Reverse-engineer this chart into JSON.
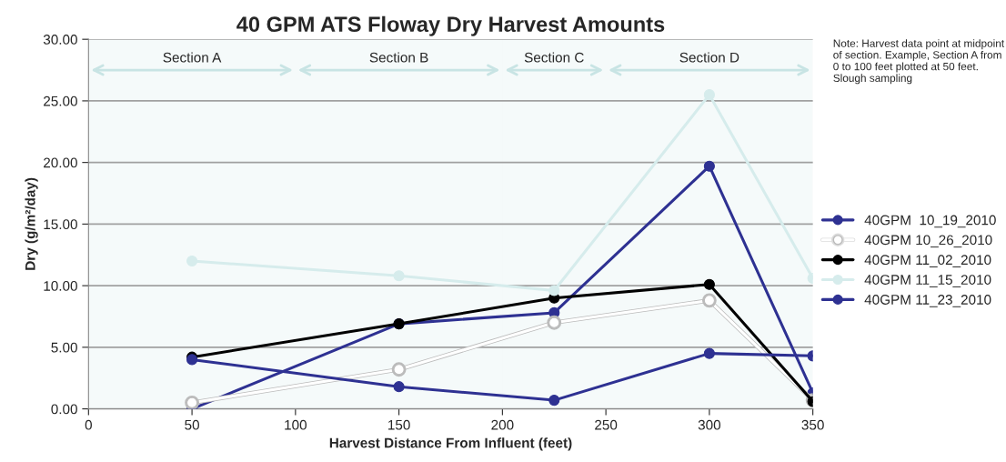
{
  "chart_data": {
    "type": "line",
    "title": "40 GPM ATS Floway Dry Harvest Amounts",
    "xlabel": "Harvest Distance From Influent (feet)",
    "ylabel": "Dry (g/m²/day)",
    "x": [
      50,
      150,
      225,
      300,
      350
    ],
    "series": [
      {
        "name": "40GPM  10_19_2010",
        "color": "#2e3192",
        "values": [
          0.0,
          6.9,
          7.8,
          19.7,
          1.3
        ]
      },
      {
        "name": "40GPM 10_26_2010",
        "color": "#ffffff",
        "values": [
          0.5,
          3.2,
          7.0,
          8.8,
          0.7
        ]
      },
      {
        "name": "40GPM 11_02_2010",
        "color": "#000000",
        "values": [
          4.2,
          6.9,
          9.0,
          10.1,
          0.6
        ]
      },
      {
        "name": "40GPM 11_15_2010",
        "color": "#d6ecec",
        "values": [
          12.0,
          10.8,
          9.6,
          25.5,
          10.6
        ]
      },
      {
        "name": "40GPM 11_23_2010",
        "color": "#2e3192",
        "values": [
          4.0,
          1.8,
          0.7,
          4.5,
          4.3
        ]
      }
    ],
    "xlim": [
      0,
      350
    ],
    "xticks": [
      0,
      50,
      100,
      150,
      200,
      250,
      300,
      350
    ],
    "ylim": [
      0,
      30
    ],
    "yticks": [
      {
        "value": 0,
        "label": "0.00"
      },
      {
        "value": 5,
        "label": "5.00"
      },
      {
        "value": 10,
        "label": "10.00"
      },
      {
        "value": 15,
        "label": "15.00"
      },
      {
        "value": 20,
        "label": "20.00"
      },
      {
        "value": 25,
        "label": "25.00"
      },
      {
        "value": 30,
        "label": "30.00"
      }
    ],
    "bands": [
      {
        "axis": "x",
        "from": 0,
        "to": 100,
        "label": "Section A",
        "color": "#c8e4e4"
      },
      {
        "axis": "x",
        "from": 100,
        "to": 200,
        "label": "Section B",
        "color": "#c8e4e4"
      },
      {
        "axis": "x",
        "from": 200,
        "to": 250,
        "label": "Section C",
        "color": "#c8e4e4"
      },
      {
        "axis": "x",
        "from": 250,
        "to": 350,
        "label": "Section D",
        "color": "#c8e4e4"
      }
    ],
    "annotations": [
      "Note: Harvest data point at midpoint of section. Example, Section A from 0 to 100 feet plotted at 50 feet.  Slough sampling"
    ],
    "grid": "y",
    "legend": "right",
    "marker": "circle",
    "line_style": "solid"
  }
}
